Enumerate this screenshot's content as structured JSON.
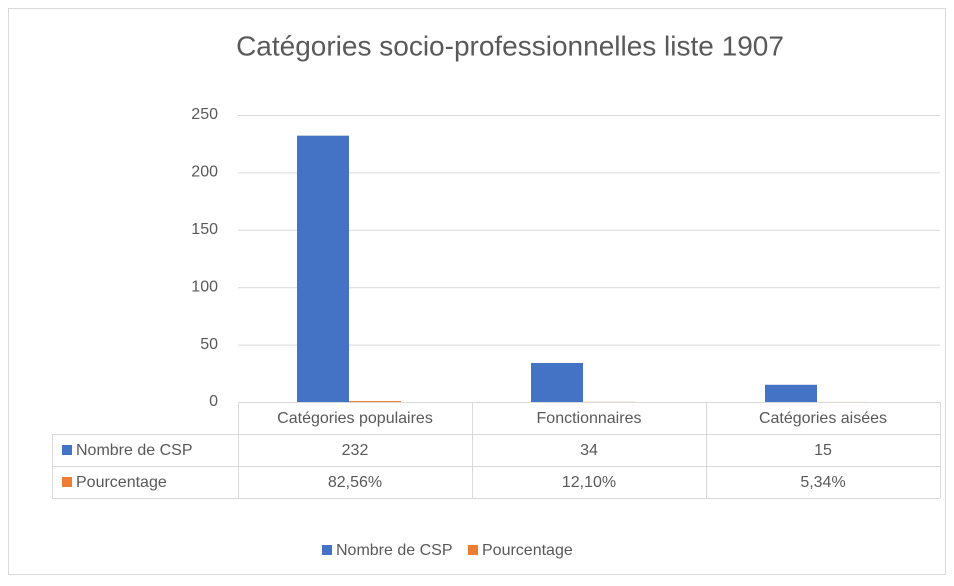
{
  "chart_data": {
    "type": "bar",
    "title": "Catégories socio-professionnelles liste 1907",
    "categories": [
      "Catégories populaires",
      "Fonctionnaires",
      "Catégories aisées"
    ],
    "series": [
      {
        "name": "Nombre de CSP",
        "color": "#4472c4",
        "values": [
          232,
          34,
          15
        ]
      },
      {
        "name": "Pourcentage",
        "color": "#ed7d31",
        "values": [
          0.8256,
          0.121,
          0.0534
        ],
        "value_labels": [
          "82,56%",
          "12,10%",
          "5,34%"
        ]
      }
    ],
    "ylim": [
      0,
      250
    ],
    "yticks": [
      0,
      50,
      100,
      150,
      200,
      250
    ],
    "grid": true,
    "legend": "bottom"
  }
}
